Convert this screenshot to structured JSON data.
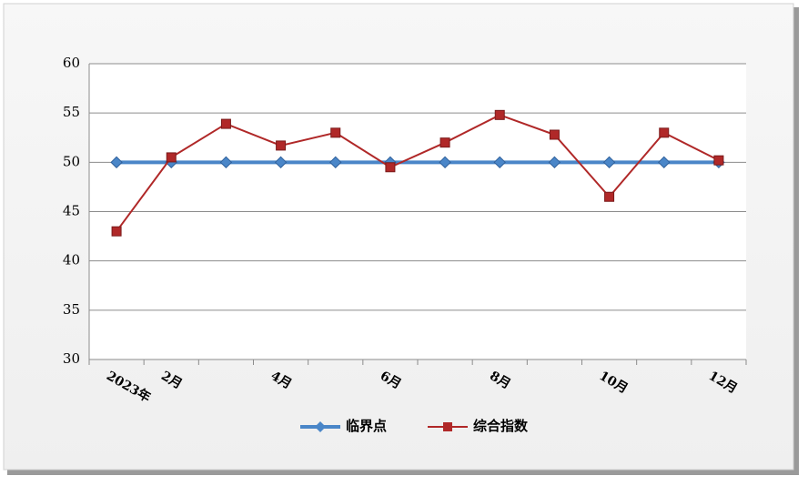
{
  "chart_data": {
    "type": "line",
    "categories": [
      "2023年",
      "2月",
      null,
      "4月",
      null,
      "6月",
      null,
      "8月",
      null,
      "10月",
      null,
      "12月"
    ],
    "series": [
      {
        "name": "临界点",
        "color": "#4a86c8",
        "values": [
          50,
          50,
          50,
          50,
          50,
          50,
          50,
          50,
          50,
          50,
          50,
          50
        ]
      },
      {
        "name": "综合指数",
        "color": "#b02828",
        "values": [
          43.0,
          50.5,
          53.9,
          51.7,
          53.0,
          49.5,
          52.0,
          54.8,
          52.8,
          46.5,
          53.0,
          50.2
        ]
      }
    ],
    "ylim": [
      30,
      60
    ],
    "yticks": [
      30,
      35,
      40,
      45,
      50,
      55,
      60
    ],
    "grid": true,
    "legend": "bottom"
  }
}
